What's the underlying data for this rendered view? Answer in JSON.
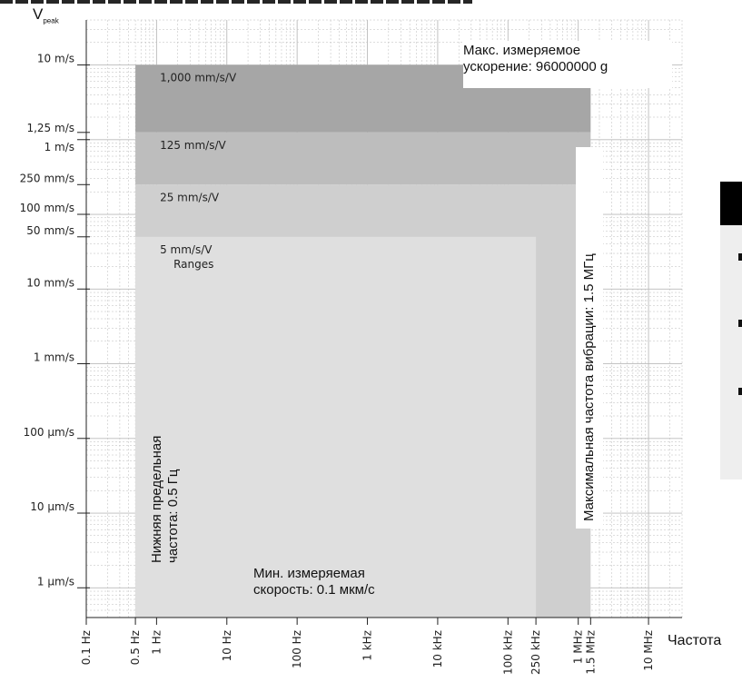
{
  "chart_data": {
    "type": "area",
    "x_scale": "log",
    "y_scale": "log",
    "xlim_hz": [
      0.1,
      30000000
    ],
    "ylim_m_per_s": [
      4e-07,
      40
    ],
    "y_axis_symbol": "V",
    "y_axis_symbol_sub": "peak",
    "x_axis_label": "Частота",
    "x_ticks": [
      {
        "value": 0.1,
        "label": "0.1 Hz"
      },
      {
        "value": 0.5,
        "label": "0.5 Hz"
      },
      {
        "value": 1,
        "label": "1 Hz"
      },
      {
        "value": 10,
        "label": "10 Hz"
      },
      {
        "value": 100,
        "label": "100 Hz"
      },
      {
        "value": 1000,
        "label": "1 kHz"
      },
      {
        "value": 10000,
        "label": "10 kHz"
      },
      {
        "value": 100000,
        "label": "100 kHz"
      },
      {
        "value": 250000,
        "label": "250 kHz"
      },
      {
        "value": 1000000,
        "label": "1 MHz"
      },
      {
        "value": 1500000,
        "label": "1.5 MHz"
      },
      {
        "value": 10000000,
        "label": "10 MHz"
      }
    ],
    "y_ticks": [
      {
        "value": 10,
        "label": "10 m/s"
      },
      {
        "value": 1.25,
        "label": "1,25 m/s"
      },
      {
        "value": 1,
        "label": "1 m/s"
      },
      {
        "value": 0.25,
        "label": "250 mm/s"
      },
      {
        "value": 0.1,
        "label": "100 mm/s"
      },
      {
        "value": 0.05,
        "label": "50 mm/s"
      },
      {
        "value": 0.01,
        "label": "10 mm/s"
      },
      {
        "value": 0.001,
        "label": "1 mm/s"
      },
      {
        "value": 0.0001,
        "label": "100 µm/s"
      },
      {
        "value": 1e-05,
        "label": "10 µm/s"
      },
      {
        "value": 1e-06,
        "label": "1 µm/s"
      }
    ],
    "ranges": [
      {
        "label": "1,000 mm/s/V",
        "f_min": 0.5,
        "f_max": 1500000,
        "v_max": 10,
        "v_min": 1.25,
        "color": "#a6a6a6"
      },
      {
        "label": "125 mm/s/V",
        "f_min": 0.5,
        "f_max": 1500000,
        "v_max": 1.25,
        "v_min": 0.25,
        "color": "#bdbdbd"
      },
      {
        "label": "25 mm/s/V",
        "f_min": 0.5,
        "f_max": 1500000,
        "v_max": 0.25,
        "v_min": 4e-07,
        "color": "#cfcfcf"
      },
      {
        "label": "5 mm/s/V",
        "sublabel": "Ranges",
        "f_min": 0.5,
        "f_max": 250000,
        "v_max": 0.05,
        "v_min": 4e-07,
        "color": "#dfdfdf"
      }
    ],
    "right_region_bottom_v": 4e-07,
    "inner_region_bottom_v": 1.8e-07
  },
  "annotations": {
    "max_accel_line1": "Макс. измеряемое",
    "max_accel_line2": "ускорение: 96000000 g",
    "max_freq": "Максимальная частота вибрации: 1.5 МГц",
    "low_freq_line1": "Нижняя предельная",
    "low_freq_line2": "частота: 0.5 Гц",
    "min_vel_line1": "Мин. измеряемая",
    "min_vel_line2": "скорость: 0.1 мкм/с"
  },
  "colors": {
    "grid": "#bbbbbb",
    "axis": "#222222",
    "band_1000": "#a6a6a6",
    "band_125": "#bdbdbd",
    "band_25": "#cfcfcf",
    "band_5": "#dfdfdf"
  }
}
